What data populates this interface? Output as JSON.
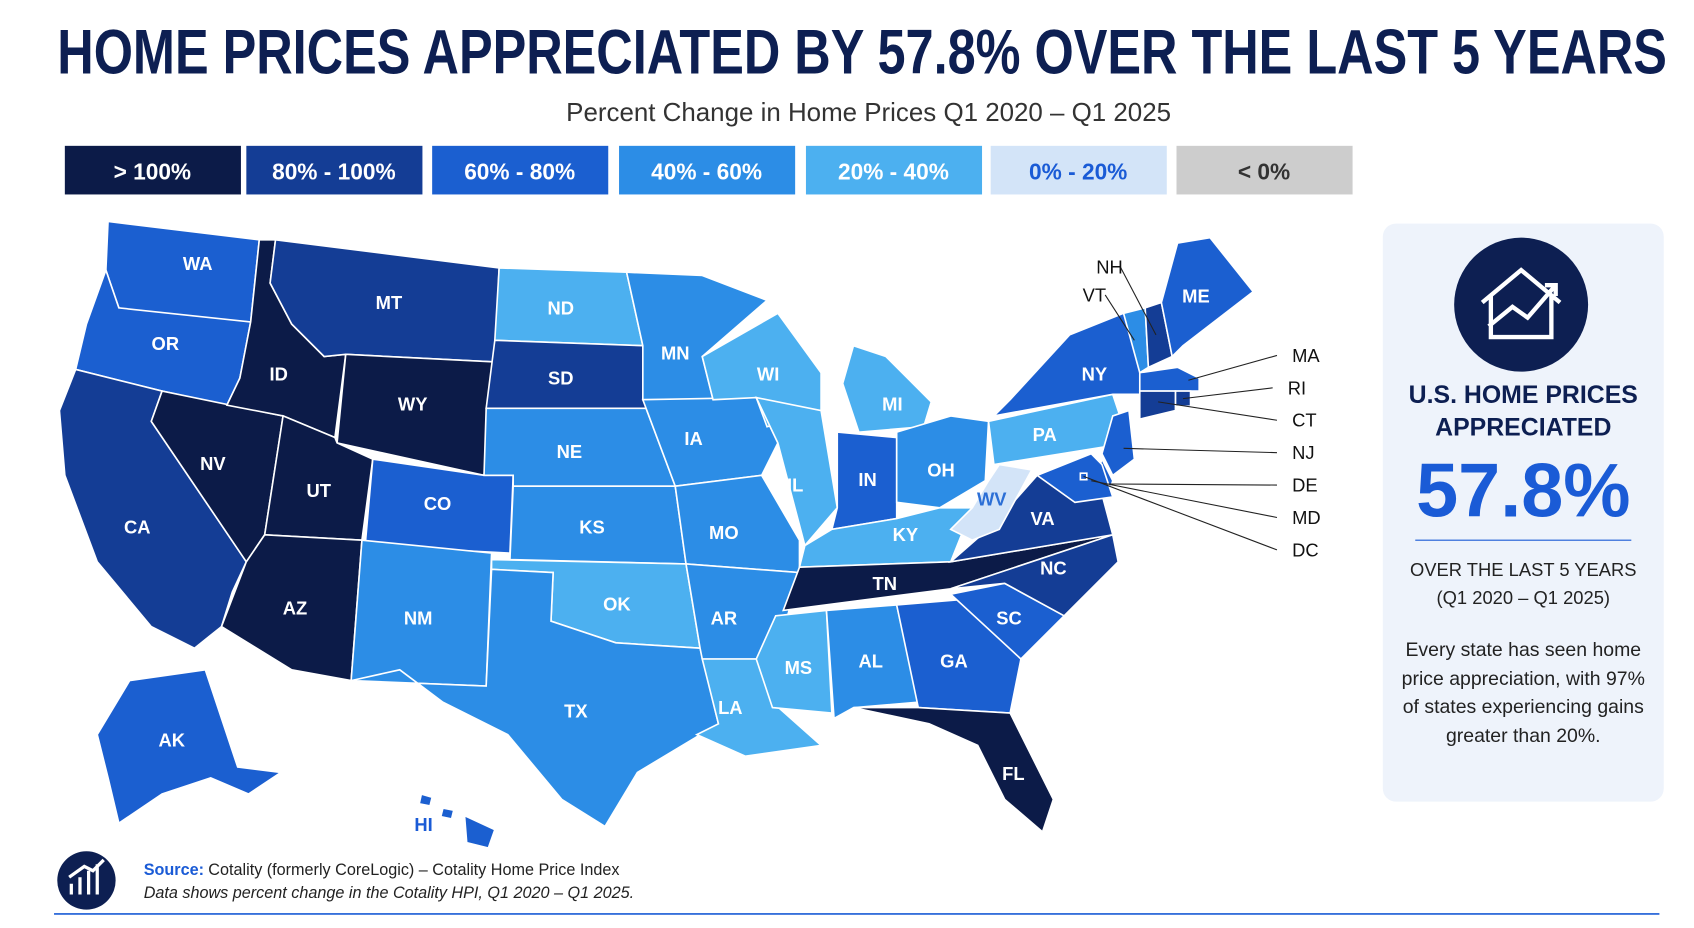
{
  "header": {
    "title": "HOME PRICES APPRECIATED BY 57.8% OVER THE LAST 5 YEARS",
    "subtitle": "Percent Change in Home Prices Q1 2020 – Q1 2025"
  },
  "legend": [
    {
      "label": "> 100%",
      "color": "#0c1b48"
    },
    {
      "label": "80% - 100%",
      "color": "#143d95"
    },
    {
      "label": "60% - 80%",
      "color": "#1b5fd0"
    },
    {
      "label": "40% - 60%",
      "color": "#2c8de6"
    },
    {
      "label": "20% - 40%",
      "color": "#4cb0f0"
    },
    {
      "label": "0% - 20%",
      "color": "#d3e4f8"
    },
    {
      "label": "< 0%",
      "color": "#cdcdcd"
    }
  ],
  "map": {
    "states": [
      {
        "label": "WA",
        "bin": 2
      },
      {
        "label": "OR",
        "bin": 2
      },
      {
        "label": "CA",
        "bin": 1
      },
      {
        "label": "NV",
        "bin": 0
      },
      {
        "label": "ID",
        "bin": 0
      },
      {
        "label": "MT",
        "bin": 1
      },
      {
        "label": "WY",
        "bin": 0
      },
      {
        "label": "UT",
        "bin": 0
      },
      {
        "label": "CO",
        "bin": 2
      },
      {
        "label": "AZ",
        "bin": 0
      },
      {
        "label": "NM",
        "bin": 3
      },
      {
        "label": "ND",
        "bin": 4
      },
      {
        "label": "SD",
        "bin": 1
      },
      {
        "label": "NE",
        "bin": 3
      },
      {
        "label": "KS",
        "bin": 3
      },
      {
        "label": "OK",
        "bin": 4
      },
      {
        "label": "TX",
        "bin": 3
      },
      {
        "label": "MN",
        "bin": 3
      },
      {
        "label": "IA",
        "bin": 3
      },
      {
        "label": "MO",
        "bin": 3
      },
      {
        "label": "AR",
        "bin": 3
      },
      {
        "label": "LA",
        "bin": 4
      },
      {
        "label": "WI",
        "bin": 4
      },
      {
        "label": "IL",
        "bin": 4
      },
      {
        "label": "MI",
        "bin": 4
      },
      {
        "label": "IN",
        "bin": 2
      },
      {
        "label": "OH",
        "bin": 3
      },
      {
        "label": "KY",
        "bin": 4
      },
      {
        "label": "TN",
        "bin": 0
      },
      {
        "label": "MS",
        "bin": 4
      },
      {
        "label": "AL",
        "bin": 3
      },
      {
        "label": "GA",
        "bin": 2
      },
      {
        "label": "FL",
        "bin": 0
      },
      {
        "label": "SC",
        "bin": 2
      },
      {
        "label": "NC",
        "bin": 1
      },
      {
        "label": "VA",
        "bin": 1
      },
      {
        "label": "WV",
        "bin": 5
      },
      {
        "label": "PA",
        "bin": 4
      },
      {
        "label": "NY",
        "bin": 2
      },
      {
        "label": "VT",
        "bin": 3
      },
      {
        "label": "NH",
        "bin": 1
      },
      {
        "label": "ME",
        "bin": 2
      },
      {
        "label": "MA",
        "bin": 2
      },
      {
        "label": "RI",
        "bin": 1
      },
      {
        "label": "CT",
        "bin": 1
      },
      {
        "label": "NJ",
        "bin": 2
      },
      {
        "label": "DE",
        "bin": 2
      },
      {
        "label": "MD",
        "bin": 2
      },
      {
        "label": "DC",
        "bin": 2
      },
      {
        "label": "AK",
        "bin": 2
      },
      {
        "label": "HI",
        "bin": 2
      }
    ]
  },
  "callout": {
    "title": "U.S. HOME PRICES APPRECIATED",
    "value": "57.8%",
    "period": "OVER THE LAST 5 YEARS",
    "range": "(Q1 2020 – Q1 2025)",
    "note": "Every state has seen home price appreciation, with 97% of states experiencing gains greater than 20%."
  },
  "footer": {
    "source_label": "Source:",
    "source": "Cotality (formerly CoreLogic) – Cotality Home Price Index",
    "note": "Data shows percent change in the Cotality HPI, Q1 2020 – Q1 2025."
  }
}
